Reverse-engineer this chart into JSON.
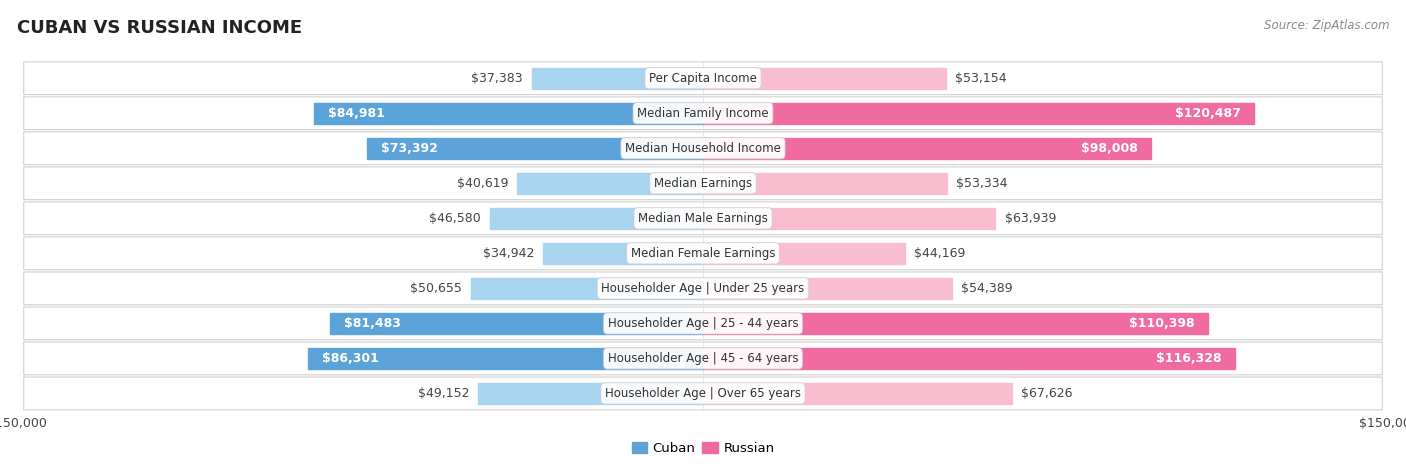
{
  "title": "CUBAN VS RUSSIAN INCOME",
  "source": "Source: ZipAtlas.com",
  "categories": [
    "Per Capita Income",
    "Median Family Income",
    "Median Household Income",
    "Median Earnings",
    "Median Male Earnings",
    "Median Female Earnings",
    "Householder Age | Under 25 years",
    "Householder Age | 25 - 44 years",
    "Householder Age | 45 - 64 years",
    "Householder Age | Over 65 years"
  ],
  "cuban_values": [
    37383,
    84981,
    73392,
    40619,
    46580,
    34942,
    50655,
    81483,
    86301,
    49152
  ],
  "russian_values": [
    53154,
    120487,
    98008,
    53334,
    63939,
    44169,
    54389,
    110398,
    116328,
    67626
  ],
  "cuban_labels": [
    "$37,383",
    "$84,981",
    "$73,392",
    "$40,619",
    "$46,580",
    "$34,942",
    "$50,655",
    "$81,483",
    "$86,301",
    "$49,152"
  ],
  "russian_labels": [
    "$53,154",
    "$120,487",
    "$98,008",
    "$53,334",
    "$63,939",
    "$44,169",
    "$54,389",
    "$110,398",
    "$116,328",
    "$67,626"
  ],
  "max_value": 150000,
  "cuban_color_light": "#a8d4f0",
  "cuban_color_dark": "#5ba3d9",
  "russian_color_light": "#f9bdd0",
  "russian_color_dark": "#f06ca0",
  "bg_color": "#ffffff",
  "row_bg_color": "#f2f2f2",
  "title_fontsize": 13,
  "label_fontsize": 9,
  "category_fontsize": 8.5,
  "axis_label_fontsize": 9,
  "cuban_white_threshold": 55000,
  "russian_white_threshold": 75000
}
